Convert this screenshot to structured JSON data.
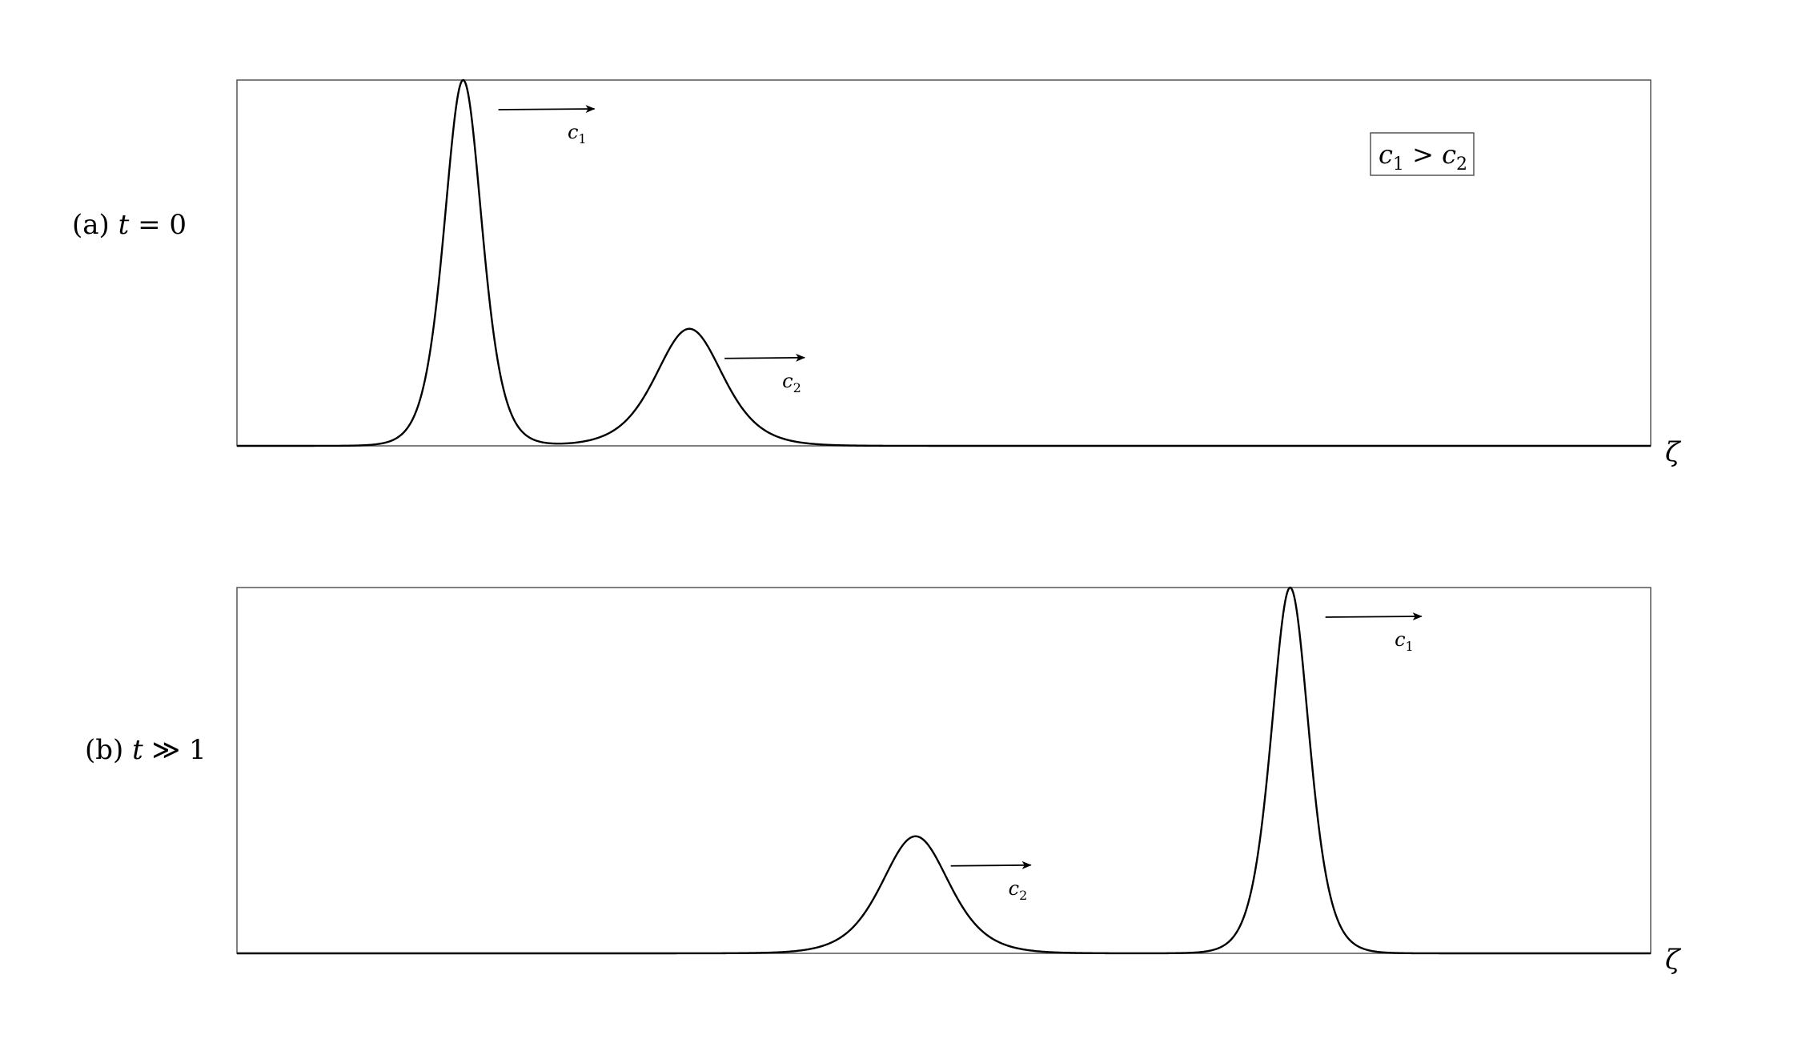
{
  "panels": [
    {
      "label_prefix": "(a) ",
      "label_var": "t",
      "label_rel": " = 0",
      "axis_label": "ζ",
      "solitons": [
        {
          "name": "c",
          "sub": "1",
          "position": 0.16,
          "amplitude": 1.0,
          "width": 0.018
        },
        {
          "name": "c",
          "sub": "2",
          "position": 0.32,
          "amplitude": 0.32,
          "width": 0.032
        }
      ]
    },
    {
      "label_prefix": "(b) ",
      "label_var": "t",
      "label_rel": " ≫ 1",
      "axis_label": "ζ",
      "solitons": [
        {
          "name": "c",
          "sub": "2",
          "position": 0.48,
          "amplitude": 0.32,
          "width": 0.032
        },
        {
          "name": "c",
          "sub": "1",
          "position": 0.745,
          "amplitude": 1.0,
          "width": 0.018
        }
      ]
    }
  ],
  "legend": {
    "lhs": "c",
    "lhs_sub": "1",
    "rel": " > ",
    "rhs": "c",
    "rhs_sub": "2"
  }
}
